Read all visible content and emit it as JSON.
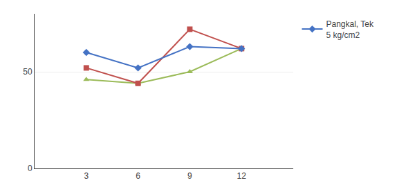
{
  "chart_data": {
    "type": "line",
    "x": [
      3,
      6,
      9,
      12
    ],
    "series": [
      {
        "color": "#9BBB59",
        "marker": "triangle-up",
        "values": [
          46,
          44,
          50,
          62
        ]
      },
      {
        "color": "#C0504D",
        "marker": "square",
        "values": [
          52,
          44,
          72,
          62
        ]
      },
      {
        "name": "Pangkal, Tek\n5 kg/cm2",
        "color": "#4472C4",
        "marker": "diamond",
        "values": [
          60,
          52,
          63,
          62
        ]
      }
    ],
    "xlim": [
      0,
      15
    ],
    "xticks": [
      3,
      6,
      9,
      12
    ],
    "ylim": [
      0,
      80
    ],
    "yticks": [
      0,
      50
    ],
    "grid": "y",
    "legend": "upper right"
  }
}
